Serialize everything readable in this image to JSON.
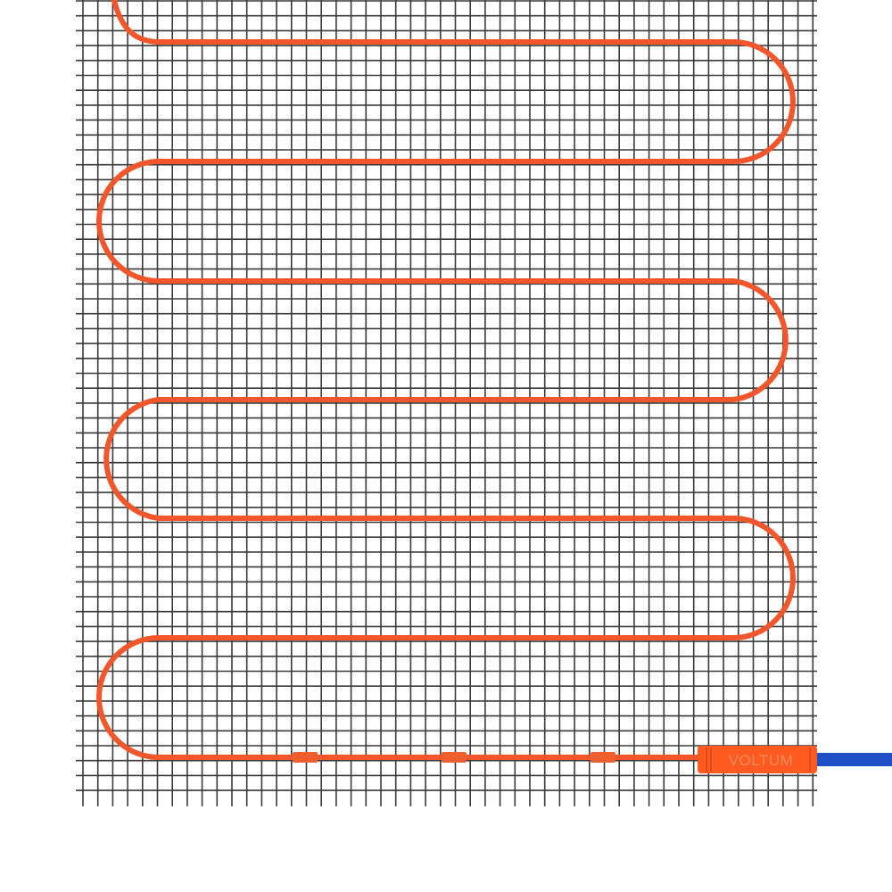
{
  "product": {
    "brand_label": "VOLTUM"
  },
  "colors": {
    "mesh": "#3a3a3a",
    "heating_cable": "#f2562a",
    "connector": "#ff5a1f",
    "cold_lead": "#1f4fc4",
    "background": "#ffffff"
  }
}
